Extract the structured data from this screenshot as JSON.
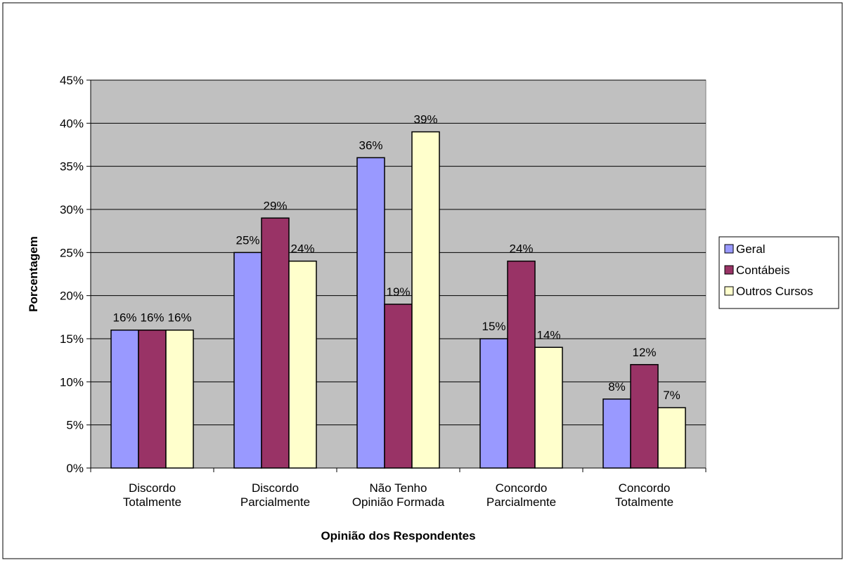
{
  "chart_data": {
    "type": "bar",
    "categories": [
      [
        "Discordo",
        "Totalmente"
      ],
      [
        "Discordo",
        "Parcialmente"
      ],
      [
        "Não Tenho",
        "Opinião Formada"
      ],
      [
        "Concordo",
        "Parcialmente"
      ],
      [
        "Concordo",
        "Totalmente"
      ]
    ],
    "series": [
      {
        "name": "Geral",
        "color": "#9999ff",
        "values": [
          16,
          25,
          36,
          15,
          8
        ],
        "labels": [
          "16%",
          "25%",
          "36%",
          "15%",
          "8%"
        ]
      },
      {
        "name": "Contábeis",
        "color": "#993366",
        "values": [
          16,
          29,
          19,
          24,
          12
        ],
        "labels": [
          "16%",
          "29%",
          "19%",
          "24%",
          "12%"
        ]
      },
      {
        "name": "Outros Cursos",
        "color": "#ffffcc",
        "values": [
          16,
          24,
          39,
          14,
          7
        ],
        "labels": [
          "16%",
          "24%",
          "39%",
          "14%",
          "7%"
        ]
      }
    ],
    "xlabel": "Opinião dos Respondentes",
    "ylabel": "Porcentagem",
    "ylim": [
      0,
      45
    ],
    "yticks": [
      0,
      5,
      10,
      15,
      20,
      25,
      30,
      35,
      40,
      45
    ],
    "ytick_labels": [
      "0%",
      "5%",
      "10%",
      "15%",
      "20%",
      "25%",
      "30%",
      "35%",
      "40%",
      "45%"
    ],
    "plot_background": "#c0c0c0",
    "grid": true,
    "legend_position": "right"
  }
}
